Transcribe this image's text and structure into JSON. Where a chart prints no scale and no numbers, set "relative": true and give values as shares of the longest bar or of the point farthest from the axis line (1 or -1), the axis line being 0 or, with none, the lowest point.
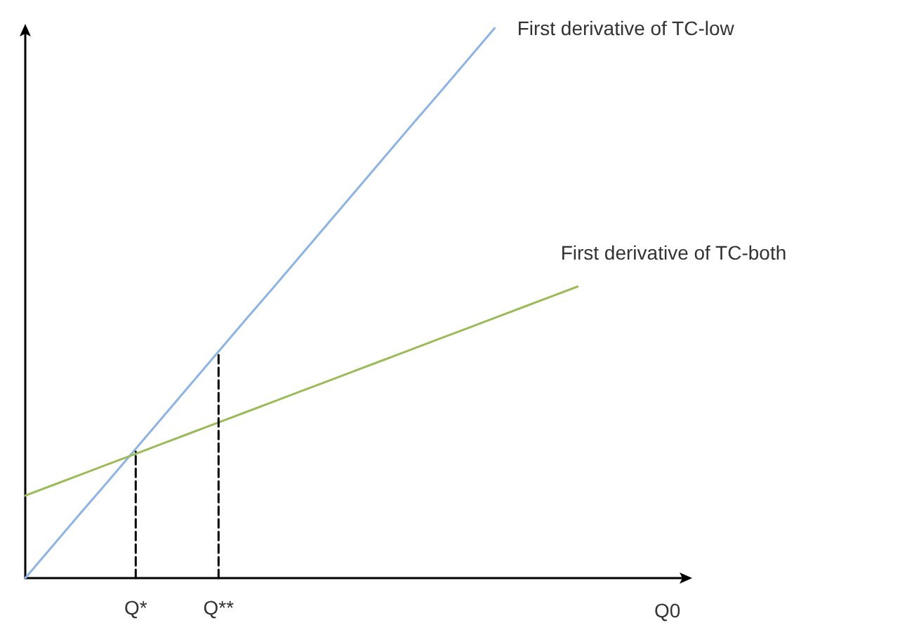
{
  "chart_data": {
    "type": "line",
    "relative": true,
    "xlabel": "Q0",
    "grid": false,
    "legend": false,
    "marker": "none",
    "categories": [
      null,
      null,
      null,
      null,
      "Q*",
      null,
      null,
      "Q**",
      null,
      null,
      null,
      null,
      null,
      null,
      null,
      null,
      null,
      null,
      null,
      null,
      null,
      null,
      null,
      null,
      null
    ],
    "series": [
      {
        "name": "First derivative of TC-low",
        "color": "#8eb4e3",
        "values": [
          0,
          0.059,
          0.118,
          0.176,
          0.235,
          0.294,
          0.353,
          0.412,
          0.471,
          0.529,
          0.588,
          0.647,
          0.706,
          0.765,
          0.824,
          0.882,
          0.941,
          1,
          null,
          null,
          null,
          null,
          null,
          null,
          null
        ]
      },
      {
        "name": "First derivative of TC-both",
        "color": "#9bbb59",
        "values": [
          0.15,
          0.169,
          0.188,
          0.207,
          0.226,
          0.245,
          0.264,
          0.283,
          0.302,
          0.321,
          0.34,
          0.359,
          0.378,
          0.397,
          0.416,
          0.435,
          0.454,
          0.473,
          0.492,
          0.511,
          0.53,
          null,
          null,
          null,
          null
        ]
      },
      {
        "color": "#000000",
        "line_style": "dashed",
        "x": [
          "Q*",
          "Q*"
        ],
        "values": [
          0,
          0.23
        ]
      },
      {
        "color": "#000000",
        "line_style": "dashed",
        "x": [
          "Q**",
          "Q**"
        ],
        "values": [
          0,
          0.412
        ]
      }
    ]
  }
}
